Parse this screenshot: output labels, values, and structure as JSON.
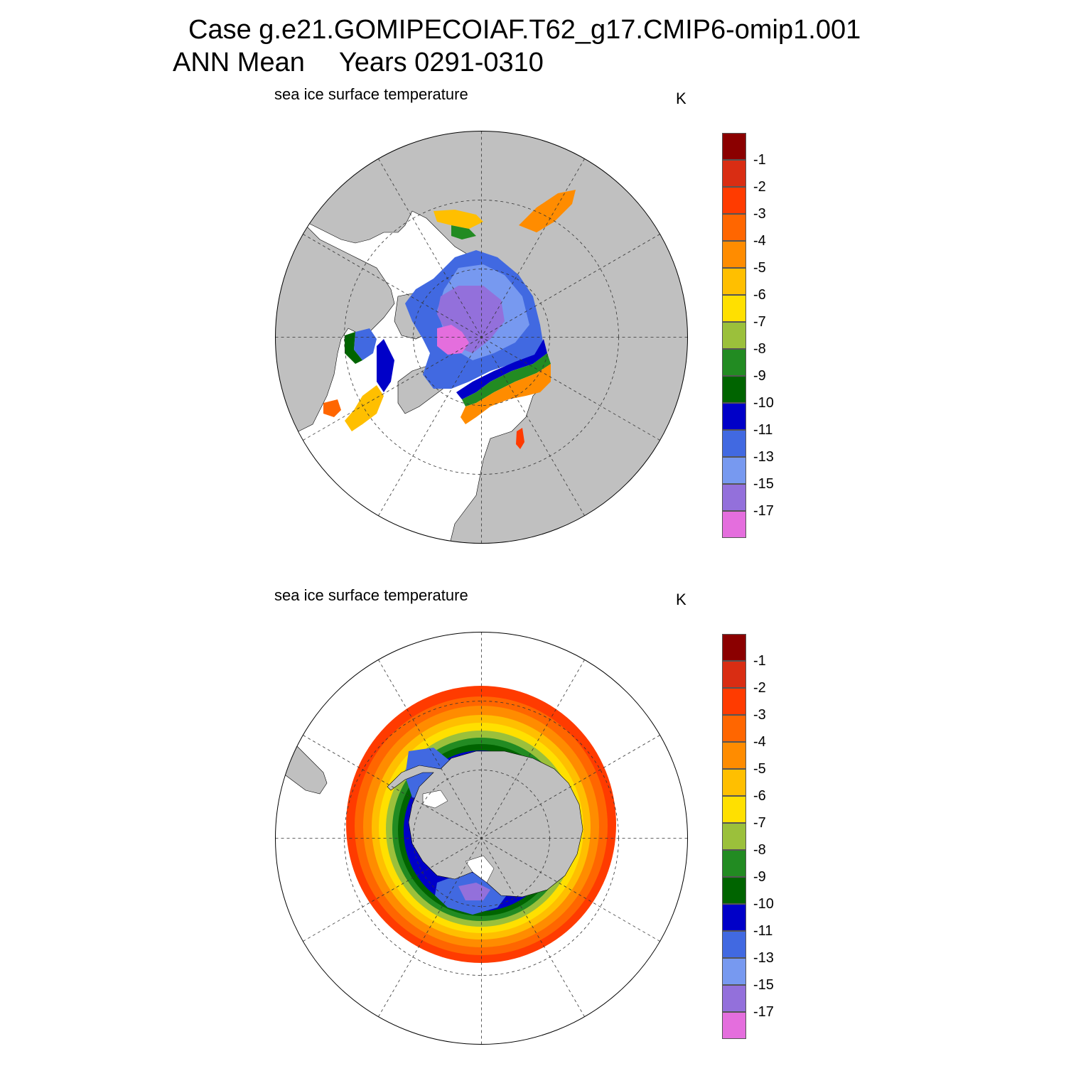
{
  "title": {
    "line1": "Case g.e21.GOMIPECOIAF.T62_g17.CMIP6-omip1.001",
    "line2_left": "ANN Mean",
    "line2_right": "Years 0291-0310"
  },
  "panels": [
    {
      "id": "north",
      "hemisphere": "NH",
      "title": "sea ice surface temperature",
      "units": "K"
    },
    {
      "id": "south",
      "hemisphere": "SH",
      "title": "sea ice surface temperature",
      "units": "K"
    }
  ],
  "colorbar": {
    "colors": [
      "#8b0000",
      "#d92d13",
      "#ff3b00",
      "#ff6600",
      "#ff8c00",
      "#ffbf00",
      "#ffe000",
      "#9bc03b",
      "#228b22",
      "#006400",
      "#0000c8",
      "#4169e1",
      "#7799f0",
      "#9370db",
      "#e46edd"
    ],
    "labels": [
      "-1",
      "-2",
      "-3",
      "-4",
      "-5",
      "-6",
      "-7",
      "-8",
      "-9",
      "-10",
      "-11",
      "-13",
      "-15",
      "-17"
    ]
  },
  "colors": {
    "land": "#c0c0c0",
    "ocean": "#ffffff",
    "grid": "#333333"
  }
}
